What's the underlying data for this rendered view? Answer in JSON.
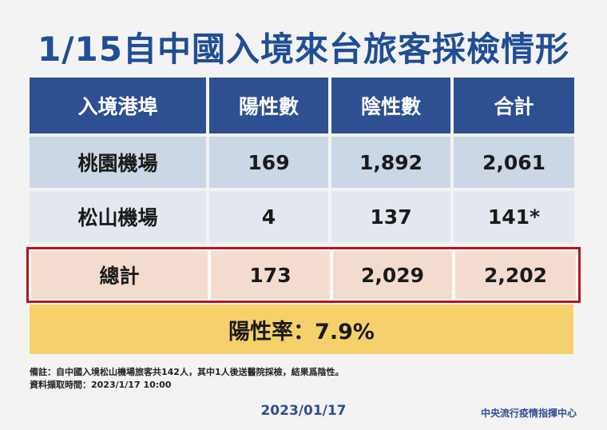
{
  "title": "1/15自中國入境來台旅客採檢情形",
  "table": {
    "headers": [
      "入境港埠",
      "陽性數",
      "陰性數",
      "合計"
    ],
    "rows": [
      [
        "桃園機場",
        "169",
        "1,892",
        "2,061"
      ],
      [
        "松山機場",
        "4",
        "137",
        "141*"
      ]
    ],
    "total": [
      "總計",
      "173",
      "2,029",
      "2,202"
    ]
  },
  "positive_rate": "陽性率：7.9%",
  "notes": [
    "備註：自中國入境松山機場旅客共142人，其中1人後送醫院採檢，結果爲陰性。",
    "資料擷取時間：2023/1/17 10:00"
  ],
  "date": "2023/01/17",
  "organization": "中央流行疫情指揮中心"
}
